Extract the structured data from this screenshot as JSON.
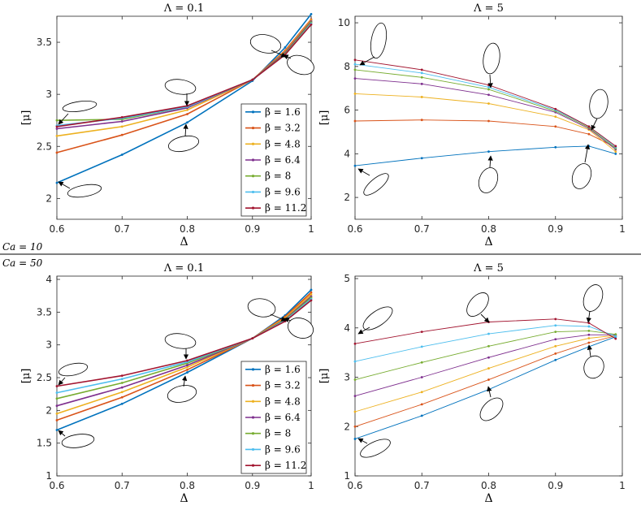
{
  "figure": {
    "divider_labels": [
      "Ca = 10",
      "Ca = 50"
    ],
    "series_colors": [
      "#0072BD",
      "#D95319",
      "#EDB120",
      "#7E2F8E",
      "#77AC30",
      "#4DBEEE",
      "#A2142F"
    ]
  },
  "chart_data": [
    {
      "id": "tl",
      "type": "line",
      "title": "Λ = 0.1",
      "xlabel": "Δ",
      "ylabel": "[μ]",
      "xlim": [
        0.6,
        0.99
      ],
      "ylim": [
        1.8,
        3.75
      ],
      "xticks": [
        0.6,
        0.7,
        0.8,
        0.9,
        1
      ],
      "xtick_labels": [
        "0.6",
        "0.7",
        "0.8",
        "0.9",
        "1"
      ],
      "yticks": [
        2,
        2.5,
        3,
        3.5
      ],
      "ytick_labels": [
        "2",
        "2.5",
        "3",
        "3.5"
      ],
      "x": [
        0.6,
        0.7,
        0.8,
        0.9,
        0.95,
        0.99
      ],
      "legend": "right",
      "series": [
        {
          "name": "β = 1.6",
          "values": [
            2.15,
            2.42,
            2.73,
            3.13,
            3.45,
            3.77
          ]
        },
        {
          "name": "β = 3.2",
          "values": [
            2.44,
            2.61,
            2.81,
            3.14,
            3.42,
            3.72
          ]
        },
        {
          "name": "β = 4.8",
          "values": [
            2.6,
            2.69,
            2.85,
            3.14,
            3.41,
            3.71
          ]
        },
        {
          "name": "β = 6.4",
          "values": [
            2.67,
            2.74,
            2.87,
            3.14,
            3.4,
            3.7
          ]
        },
        {
          "name": "β = 8",
          "values": [
            2.75,
            2.76,
            2.88,
            3.14,
            3.39,
            3.69
          ]
        },
        {
          "name": "β = 9.6",
          "values": [
            2.7,
            2.77,
            2.88,
            3.14,
            3.38,
            3.68
          ]
        },
        {
          "name": "β = 11.2",
          "values": [
            2.69,
            2.78,
            2.89,
            3.14,
            3.38,
            3.67
          ]
        }
      ]
    },
    {
      "id": "tr",
      "type": "line",
      "title": "Λ = 5",
      "xlabel": "Δ",
      "ylabel": "[μ]",
      "xlim": [
        0.6,
        1
      ],
      "ylim": [
        1,
        10.3
      ],
      "xticks": [
        0.6,
        0.7,
        0.8,
        0.9,
        1
      ],
      "xtick_labels": [
        "0.6",
        "0.7",
        "0.8",
        "0.9",
        "1"
      ],
      "yticks": [
        2,
        4,
        6,
        8,
        10
      ],
      "ytick_labels": [
        "2",
        "4",
        "6",
        "8",
        "10"
      ],
      "x": [
        0.6,
        0.7,
        0.8,
        0.9,
        0.95,
        0.99
      ],
      "series": [
        {
          "name": "β = 1.6",
          "values": [
            3.45,
            3.8,
            4.1,
            4.3,
            4.35,
            4.0
          ]
        },
        {
          "name": "β = 3.2",
          "values": [
            5.5,
            5.55,
            5.5,
            5.25,
            4.9,
            4.3
          ]
        },
        {
          "name": "β = 4.8",
          "values": [
            6.75,
            6.6,
            6.3,
            5.7,
            5.1,
            4.1
          ]
        },
        {
          "name": "β = 6.4",
          "values": [
            7.45,
            7.2,
            6.7,
            5.9,
            5.15,
            4.2
          ]
        },
        {
          "name": "β = 8",
          "values": [
            7.85,
            7.5,
            6.95,
            5.95,
            5.2,
            4.25
          ]
        },
        {
          "name": "β = 9.6",
          "values": [
            8.1,
            7.7,
            7.05,
            6.0,
            5.25,
            4.3
          ]
        },
        {
          "name": "β = 11.2",
          "values": [
            8.3,
            7.85,
            7.15,
            6.05,
            5.25,
            4.35
          ]
        }
      ]
    },
    {
      "id": "bl",
      "type": "line",
      "title": "Λ = 0.1",
      "xlabel": "Δ",
      "ylabel": "[μ]",
      "xlim": [
        0.6,
        0.99
      ],
      "ylim": [
        1,
        4.05
      ],
      "xticks": [
        0.6,
        0.7,
        0.8,
        0.9,
        1
      ],
      "xtick_labels": [
        "0.6",
        "0.7",
        "0.8",
        "0.9",
        "1"
      ],
      "yticks": [
        1,
        1.5,
        2,
        2.5,
        3,
        3.5,
        4
      ],
      "ytick_labels": [
        "1",
        "1.5",
        "2",
        "2.5",
        "3",
        "3.5",
        "4"
      ],
      "x": [
        0.6,
        0.7,
        0.8,
        0.9,
        0.95,
        0.99
      ],
      "legend": "right",
      "series": [
        {
          "name": "β = 1.6",
          "values": [
            1.7,
            2.1,
            2.58,
            3.1,
            3.45,
            3.84
          ]
        },
        {
          "name": "β = 3.2",
          "values": [
            1.85,
            2.2,
            2.62,
            3.1,
            3.43,
            3.8
          ]
        },
        {
          "name": "β = 4.8",
          "values": [
            1.95,
            2.28,
            2.66,
            3.1,
            3.41,
            3.77
          ]
        },
        {
          "name": "β = 6.4",
          "values": [
            2.07,
            2.35,
            2.69,
            3.1,
            3.39,
            3.74
          ]
        },
        {
          "name": "β = 8",
          "values": [
            2.18,
            2.42,
            2.72,
            3.1,
            3.38,
            3.72
          ]
        },
        {
          "name": "β = 9.6",
          "values": [
            2.27,
            2.48,
            2.74,
            3.1,
            3.37,
            3.7
          ]
        },
        {
          "name": "β = 11.2",
          "values": [
            2.37,
            2.53,
            2.76,
            3.1,
            3.36,
            3.68
          ]
        }
      ]
    },
    {
      "id": "br",
      "type": "line",
      "title": "Λ = 5",
      "xlabel": "Δ",
      "ylabel": "[μ]",
      "xlim": [
        0.6,
        1
      ],
      "ylim": [
        1,
        5.05
      ],
      "xticks": [
        0.6,
        0.7,
        0.8,
        0.9,
        1
      ],
      "xtick_labels": [
        "0.6",
        "0.7",
        "0.8",
        "0.9",
        "1"
      ],
      "yticks": [
        1,
        2,
        3,
        4,
        5
      ],
      "ytick_labels": [
        "1",
        "2",
        "3",
        "4",
        "5"
      ],
      "x": [
        0.6,
        0.7,
        0.8,
        0.9,
        0.95,
        0.99
      ],
      "series": [
        {
          "name": "β = 1.6",
          "values": [
            1.75,
            2.22,
            2.75,
            3.35,
            3.62,
            3.82
          ]
        },
        {
          "name": "β = 3.2",
          "values": [
            2.0,
            2.45,
            2.95,
            3.48,
            3.7,
            3.84
          ]
        },
        {
          "name": "β = 4.8",
          "values": [
            2.3,
            2.7,
            3.18,
            3.63,
            3.79,
            3.85
          ]
        },
        {
          "name": "β = 6.4",
          "values": [
            2.62,
            3.0,
            3.4,
            3.77,
            3.86,
            3.86
          ]
        },
        {
          "name": "β = 8",
          "values": [
            2.95,
            3.3,
            3.63,
            3.92,
            3.94,
            3.87
          ]
        },
        {
          "name": "β = 9.6",
          "values": [
            3.32,
            3.62,
            3.88,
            4.05,
            4.03,
            3.83
          ]
        },
        {
          "name": "β = 11.2",
          "values": [
            3.68,
            3.92,
            4.12,
            4.18,
            4.1,
            3.78
          ]
        }
      ]
    }
  ]
}
